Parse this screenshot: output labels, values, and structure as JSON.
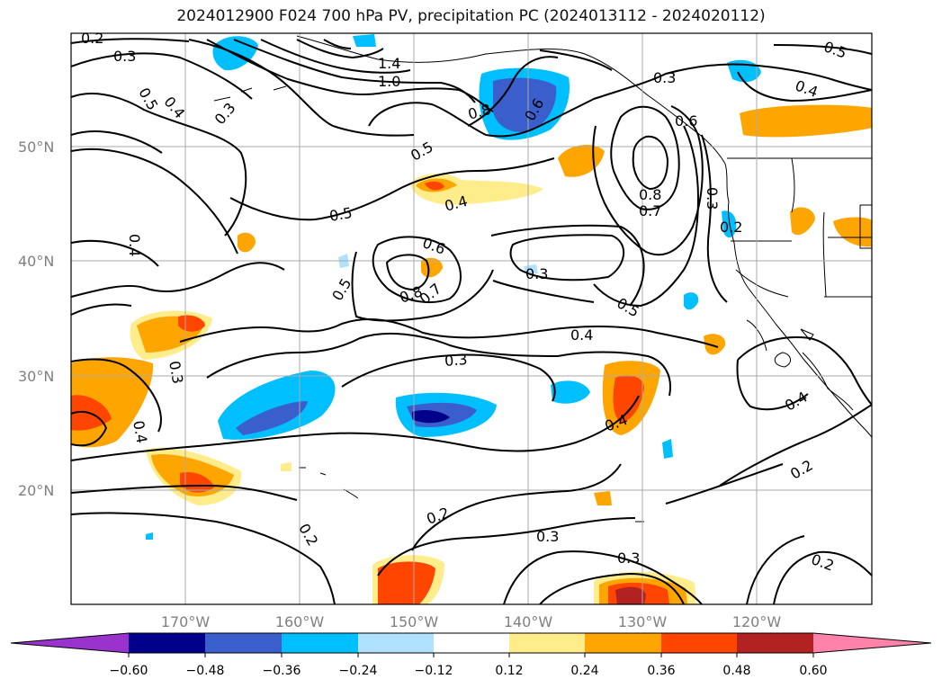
{
  "title": "2024012900 F024 700 hPa PV, precipitation PC (2024013112 - 2024020112)",
  "latitude_labels": [
    "50°N",
    "40°N",
    "30°N",
    "20°N"
  ],
  "longitude_labels": [
    "170°W",
    "160°W",
    "150°W",
    "140°W",
    "130°W",
    "120°W"
  ],
  "contour_labels": [
    "0.2",
    "0.3",
    "0.5",
    "0.4",
    "0.3",
    "1.4",
    "1.0",
    "0.8",
    "0.6",
    "0.3",
    "0.5",
    "0.4",
    "0.5",
    "0.4",
    "0.6",
    "0.8",
    "0.7",
    "0.3",
    "0.2",
    "0.5",
    "0.4",
    "0.5",
    "0.6",
    "0.8",
    "0.7",
    "0.3",
    "0.5",
    "0.4",
    "0.3",
    "0.3",
    "0.4",
    "0.4",
    "0.4",
    "0.2",
    "0.2",
    "0.3",
    "0.3",
    "0.2",
    "0.2"
  ],
  "colorbar": {
    "ticks": [
      "−0.60",
      "−0.48",
      "−0.36",
      "−0.24",
      "−0.12",
      "0.12",
      "0.24",
      "0.36",
      "0.48",
      "0.60"
    ],
    "colors": [
      "#9a32cd",
      "#00008b",
      "#3a5fcd",
      "#00bfff",
      "#b0e2ff",
      "#ffffff",
      "#ffec8b",
      "#ffa500",
      "#ff4500",
      "#b22222",
      "#ff82ab"
    ]
  }
}
